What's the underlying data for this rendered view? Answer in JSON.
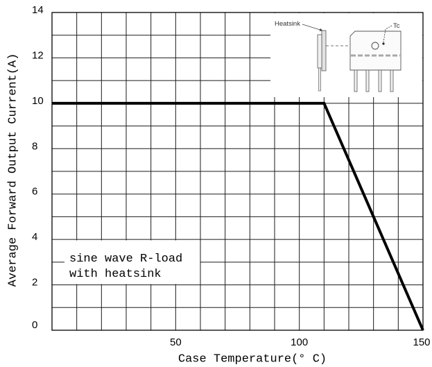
{
  "chart_data": {
    "type": "line",
    "xlabel": "Case Temperature(° C)",
    "ylabel": "Average Forward Output Current(A)",
    "xlim": [
      0,
      150
    ],
    "ylim": [
      0,
      14
    ],
    "x_ticks": [
      50,
      100,
      150
    ],
    "y_ticks": [
      0,
      2,
      4,
      6,
      8,
      10,
      12,
      14
    ],
    "grid": true,
    "grid_step": {
      "x": 10,
      "y": 1
    },
    "series": [
      {
        "x": [
          0,
          110,
          150
        ],
        "y": [
          10,
          10,
          0
        ],
        "color": "#000000"
      }
    ],
    "annotations": {
      "condition_box": [
        "sine wave R-load",
        "with heatsink"
      ],
      "inset_heatsink_label": "Heatsink",
      "inset_tc_label": "Tc"
    }
  }
}
